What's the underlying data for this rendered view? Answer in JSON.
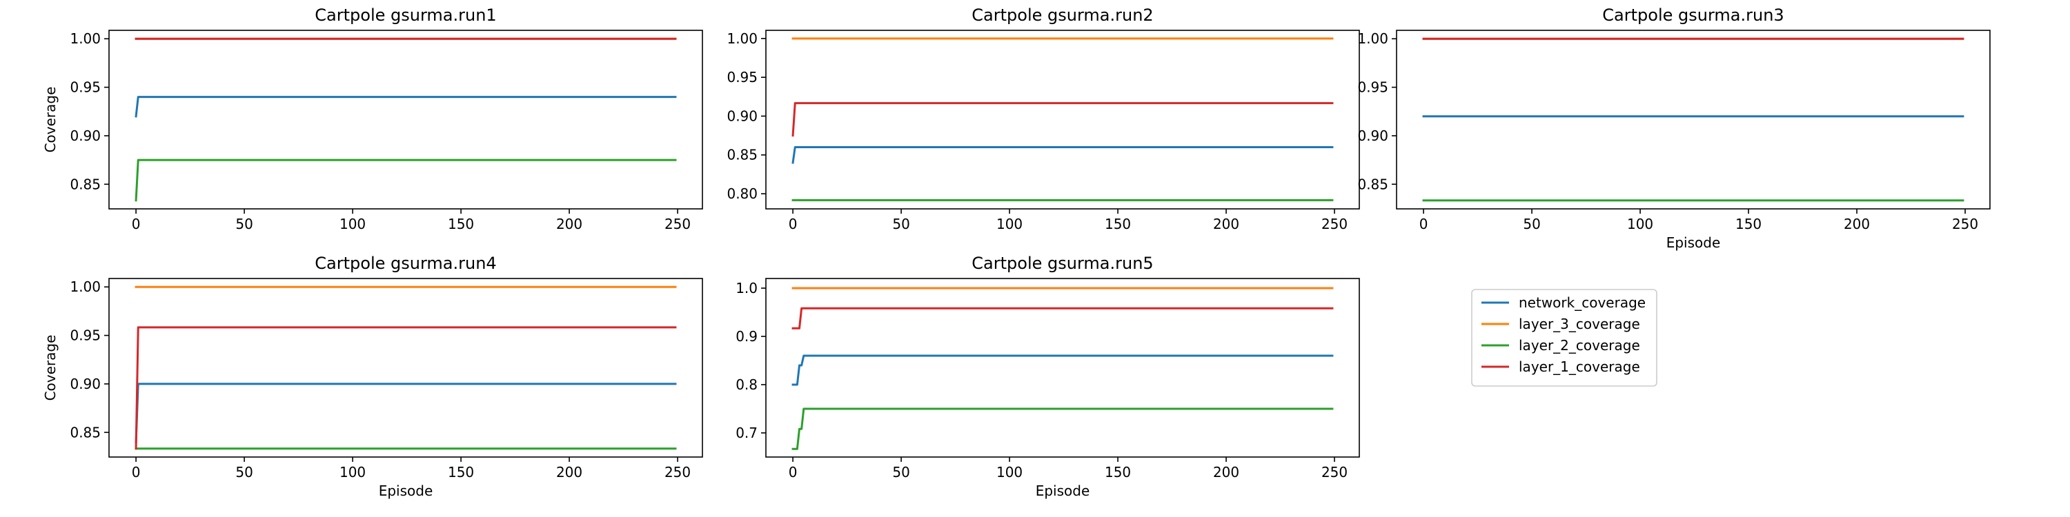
{
  "series_colors": {
    "network_coverage": "#1f77b4",
    "layer_3_coverage": "#ff7f0e",
    "layer_2_coverage": "#2ca02c",
    "layer_1_coverage": "#d62728"
  },
  "legend": {
    "placement": "bottom-right empty cell",
    "entries": [
      "network_coverage",
      "layer_3_coverage",
      "layer_2_coverage",
      "layer_1_coverage"
    ]
  },
  "chart_data": [
    {
      "type": "line",
      "title": "Cartpole gsurma.run1",
      "xlabel": "",
      "ylabel": "Coverage",
      "xlim": [
        -12.45,
        261.45
      ],
      "ylim": [
        0.8246,
        1.0087
      ],
      "xticks": [
        0,
        50,
        100,
        150,
        200,
        250
      ],
      "yticks": [
        0.85,
        0.9,
        0.95,
        1.0
      ],
      "yticklabels": [
        "0.85",
        "0.90",
        "0.95",
        "1.00"
      ],
      "grid": false,
      "series": [
        {
          "name": "network_coverage",
          "x": [
            0,
            1,
            249
          ],
          "y": [
            0.92,
            0.94,
            0.94
          ]
        },
        {
          "name": "layer_3_coverage",
          "x": [
            0,
            249
          ],
          "y": [
            1.0,
            1.0
          ]
        },
        {
          "name": "layer_2_coverage",
          "x": [
            0,
            1,
            249
          ],
          "y": [
            0.8333,
            0.875,
            0.875
          ]
        },
        {
          "name": "layer_1_coverage",
          "x": [
            0,
            249
          ],
          "y": [
            1.0,
            1.0
          ]
        }
      ]
    },
    {
      "type": "line",
      "title": "Cartpole gsurma.run2",
      "xlabel": "",
      "ylabel": "",
      "xlim": [
        -12.45,
        261.45
      ],
      "ylim": [
        0.7805,
        1.0105
      ],
      "xticks": [
        0,
        50,
        100,
        150,
        200,
        250
      ],
      "yticks": [
        0.8,
        0.85,
        0.9,
        0.95,
        1.0
      ],
      "yticklabels": [
        "0.80",
        "0.85",
        "0.90",
        "0.95",
        "1.00"
      ],
      "grid": false,
      "series": [
        {
          "name": "network_coverage",
          "x": [
            0,
            1,
            249
          ],
          "y": [
            0.84,
            0.86,
            0.86
          ]
        },
        {
          "name": "layer_3_coverage",
          "x": [
            0,
            249
          ],
          "y": [
            1.0,
            1.0
          ]
        },
        {
          "name": "layer_2_coverage",
          "x": [
            0,
            249
          ],
          "y": [
            0.7917,
            0.7917
          ]
        },
        {
          "name": "layer_1_coverage",
          "x": [
            0,
            1,
            249
          ],
          "y": [
            0.875,
            0.9167,
            0.9167
          ]
        }
      ]
    },
    {
      "type": "line",
      "title": "Cartpole gsurma.run3",
      "xlabel": "Episode",
      "ylabel": "",
      "xlim": [
        -12.45,
        261.45
      ],
      "ylim": [
        0.8246,
        1.0087
      ],
      "xticks": [
        0,
        50,
        100,
        150,
        200,
        250
      ],
      "yticks": [
        0.85,
        0.9,
        0.95,
        1.0
      ],
      "yticklabels": [
        "0.85",
        "0.90",
        "0.95",
        "1.00"
      ],
      "grid": false,
      "series": [
        {
          "name": "network_coverage",
          "x": [
            0,
            249
          ],
          "y": [
            0.92,
            0.92
          ]
        },
        {
          "name": "layer_3_coverage",
          "x": [
            0,
            249
          ],
          "y": [
            1.0,
            1.0
          ]
        },
        {
          "name": "layer_2_coverage",
          "x": [
            0,
            249
          ],
          "y": [
            0.8333,
            0.8333
          ]
        },
        {
          "name": "layer_1_coverage",
          "x": [
            0,
            249
          ],
          "y": [
            1.0,
            1.0
          ]
        }
      ]
    },
    {
      "type": "line",
      "title": "Cartpole gsurma.run4",
      "xlabel": "Episode",
      "ylabel": "Coverage",
      "xlim": [
        -12.45,
        261.45
      ],
      "ylim": [
        0.8246,
        1.0087
      ],
      "xticks": [
        0,
        50,
        100,
        150,
        200,
        250
      ],
      "yticks": [
        0.85,
        0.9,
        0.95,
        1.0
      ],
      "yticklabels": [
        "0.85",
        "0.90",
        "0.95",
        "1.00"
      ],
      "grid": false,
      "series": [
        {
          "name": "network_coverage",
          "x": [
            0,
            1,
            249
          ],
          "y": [
            0.84,
            0.9,
            0.9
          ]
        },
        {
          "name": "layer_3_coverage",
          "x": [
            0,
            249
          ],
          "y": [
            1.0,
            1.0
          ]
        },
        {
          "name": "layer_2_coverage",
          "x": [
            0,
            249
          ],
          "y": [
            0.8333,
            0.8333
          ]
        },
        {
          "name": "layer_1_coverage",
          "x": [
            0,
            1,
            249
          ],
          "y": [
            0.8333,
            0.9583,
            0.9583
          ]
        }
      ]
    },
    {
      "type": "line",
      "title": "Cartpole gsurma.run5",
      "xlabel": "Episode",
      "ylabel": "",
      "xlim": [
        -12.45,
        261.45
      ],
      "ylim": [
        0.65,
        1.02
      ],
      "xticks": [
        0,
        50,
        100,
        150,
        200,
        250
      ],
      "yticks": [
        0.7,
        0.8,
        0.9,
        1.0
      ],
      "yticklabels": [
        "0.7",
        "0.8",
        "0.9",
        "1.0"
      ],
      "grid": false,
      "series": [
        {
          "name": "network_coverage",
          "x": [
            0,
            2,
            3,
            4,
            5,
            6,
            249
          ],
          "y": [
            0.8,
            0.8,
            0.84,
            0.84,
            0.86,
            0.86,
            0.86
          ]
        },
        {
          "name": "layer_3_coverage",
          "x": [
            0,
            249
          ],
          "y": [
            1.0,
            1.0
          ]
        },
        {
          "name": "layer_2_coverage",
          "x": [
            0,
            2,
            3,
            4,
            5,
            6,
            249
          ],
          "y": [
            0.6667,
            0.6667,
            0.7083,
            0.7083,
            0.75,
            0.75,
            0.75
          ]
        },
        {
          "name": "layer_1_coverage",
          "x": [
            0,
            3,
            4,
            249
          ],
          "y": [
            0.9167,
            0.9167,
            0.9583,
            0.9583
          ]
        }
      ]
    }
  ]
}
